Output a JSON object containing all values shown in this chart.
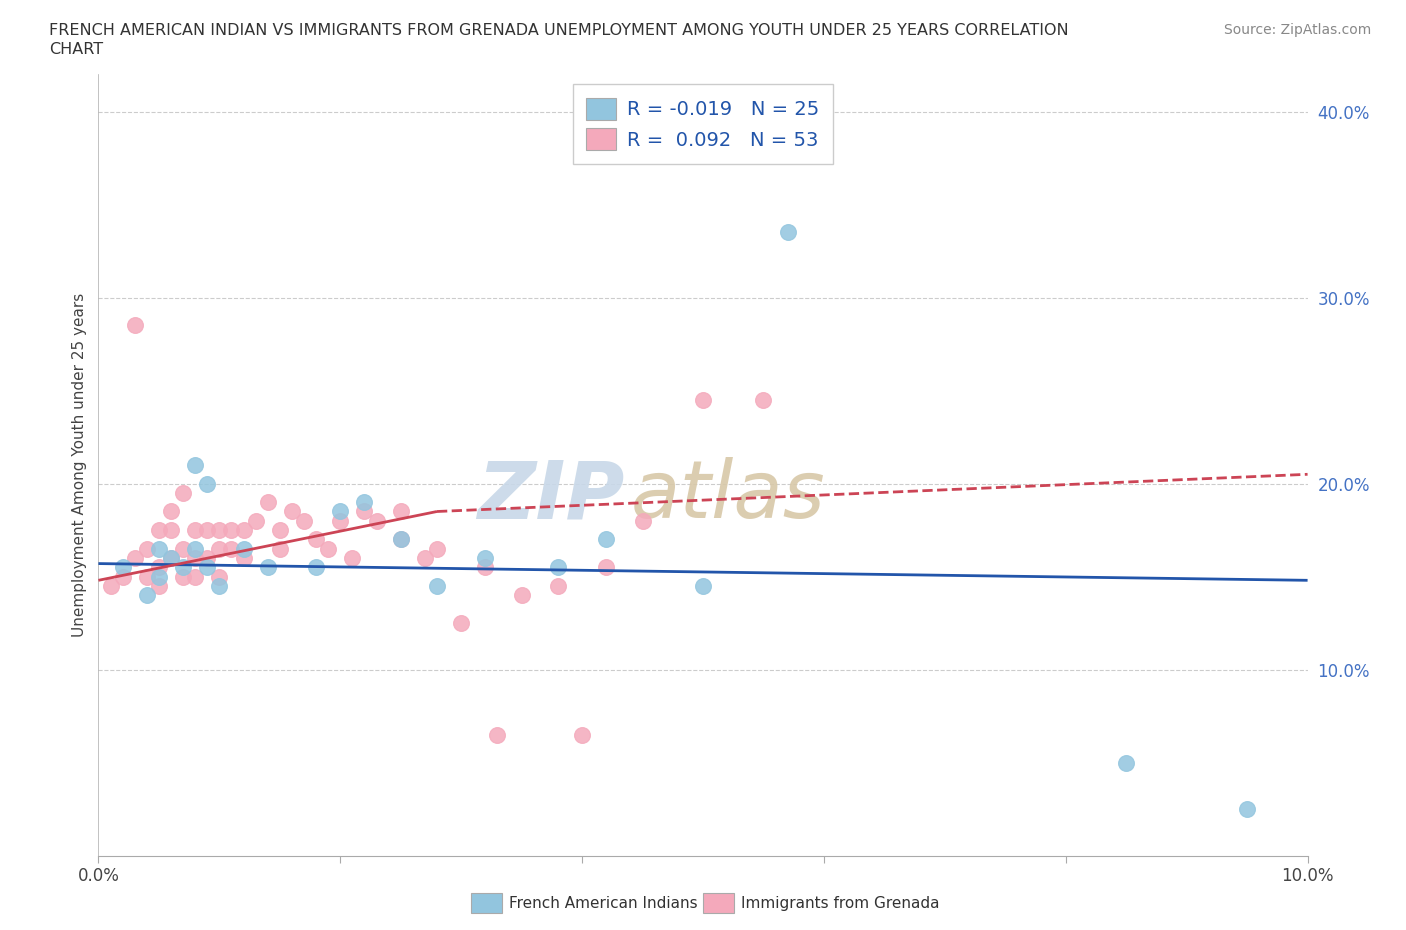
{
  "title_line1": "FRENCH AMERICAN INDIAN VS IMMIGRANTS FROM GRENADA UNEMPLOYMENT AMONG YOUTH UNDER 25 YEARS CORRELATION",
  "title_line2": "CHART",
  "source_text": "Source: ZipAtlas.com",
  "ylabel": "Unemployment Among Youth under 25 years",
  "xlim": [
    0.0,
    0.1
  ],
  "ylim": [
    0.0,
    0.42
  ],
  "xticks": [
    0.0,
    0.02,
    0.04,
    0.06,
    0.08,
    0.1
  ],
  "xticklabels": [
    "0.0%",
    "",
    "",
    "",
    "",
    "10.0%"
  ],
  "yticks": [
    0.0,
    0.1,
    0.2,
    0.3,
    0.4
  ],
  "yticklabels": [
    "",
    "10.0%",
    "20.0%",
    "30.0%",
    "40.0%"
  ],
  "blue_color": "#92C5DE",
  "pink_color": "#F4A9BB",
  "blue_line_color": "#2255AA",
  "pink_line_color": "#CC4455",
  "grid_color": "#CCCCCC",
  "blue_label": "French American Indians",
  "pink_label": "Immigrants from Grenada",
  "legend_text_color": "#2255AA",
  "blue_x": [
    0.002,
    0.004,
    0.005,
    0.005,
    0.006,
    0.007,
    0.008,
    0.008,
    0.009,
    0.009,
    0.01,
    0.012,
    0.014,
    0.018,
    0.02,
    0.022,
    0.025,
    0.028,
    0.032,
    0.038,
    0.042,
    0.05,
    0.057,
    0.085,
    0.095
  ],
  "blue_y": [
    0.155,
    0.14,
    0.165,
    0.15,
    0.16,
    0.155,
    0.21,
    0.165,
    0.2,
    0.155,
    0.145,
    0.165,
    0.155,
    0.155,
    0.185,
    0.19,
    0.17,
    0.145,
    0.16,
    0.155,
    0.17,
    0.145,
    0.335,
    0.05,
    0.025
  ],
  "pink_x": [
    0.001,
    0.002,
    0.003,
    0.003,
    0.004,
    0.004,
    0.005,
    0.005,
    0.005,
    0.006,
    0.006,
    0.006,
    0.007,
    0.007,
    0.007,
    0.008,
    0.008,
    0.008,
    0.009,
    0.009,
    0.01,
    0.01,
    0.01,
    0.011,
    0.011,
    0.012,
    0.012,
    0.013,
    0.014,
    0.015,
    0.015,
    0.016,
    0.017,
    0.018,
    0.019,
    0.02,
    0.021,
    0.022,
    0.023,
    0.025,
    0.025,
    0.027,
    0.028,
    0.03,
    0.032,
    0.033,
    0.035,
    0.038,
    0.04,
    0.042,
    0.045,
    0.05,
    0.055
  ],
  "pink_y": [
    0.145,
    0.15,
    0.285,
    0.16,
    0.165,
    0.15,
    0.175,
    0.155,
    0.145,
    0.185,
    0.175,
    0.16,
    0.195,
    0.165,
    0.15,
    0.175,
    0.16,
    0.15,
    0.175,
    0.16,
    0.175,
    0.165,
    0.15,
    0.175,
    0.165,
    0.175,
    0.16,
    0.18,
    0.19,
    0.175,
    0.165,
    0.185,
    0.18,
    0.17,
    0.165,
    0.18,
    0.16,
    0.185,
    0.18,
    0.185,
    0.17,
    0.16,
    0.165,
    0.125,
    0.155,
    0.065,
    0.14,
    0.145,
    0.065,
    0.155,
    0.18,
    0.245,
    0.245
  ]
}
